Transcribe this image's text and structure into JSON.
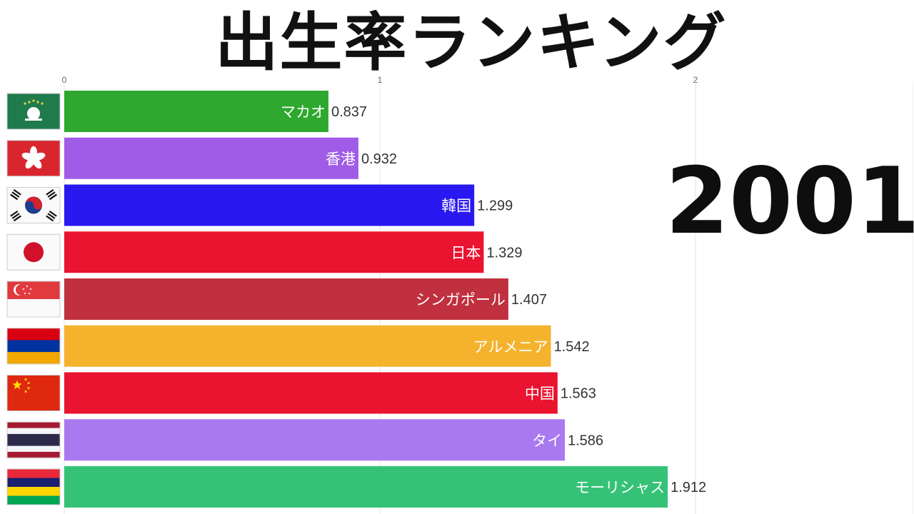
{
  "title": "出生率ランキング",
  "year": "2001",
  "chart_data": {
    "type": "bar",
    "orientation": "horizontal",
    "xlim": [
      0,
      2.5
    ],
    "x_ticks": [
      "0",
      "1",
      "2"
    ],
    "grid": true,
    "categories": [
      "マカオ",
      "香港",
      "韓国",
      "日本",
      "シンガポール",
      "アルメニア",
      "中国",
      "タイ",
      "モーリシャス"
    ],
    "values": [
      0.837,
      0.932,
      1.299,
      1.329,
      1.407,
      1.542,
      1.563,
      1.586,
      1.912
    ],
    "value_labels": [
      "0.837",
      "0.932",
      "1.299",
      "1.329",
      "1.407",
      "1.542",
      "1.563",
      "1.586",
      "1.912"
    ],
    "colors": [
      "#2ea82e",
      "#a05ce6",
      "#2a18f0",
      "#ea1330",
      "#c0303e",
      "#f5b32d",
      "#ea1330",
      "#a979ef",
      "#35c276"
    ],
    "flags": [
      "macau-flag-icon",
      "hong-kong-flag-icon",
      "south-korea-flag-icon",
      "japan-flag-icon",
      "singapore-flag-icon",
      "armenia-flag-icon",
      "china-flag-icon",
      "thailand-flag-icon",
      "mauritius-flag-icon"
    ]
  }
}
